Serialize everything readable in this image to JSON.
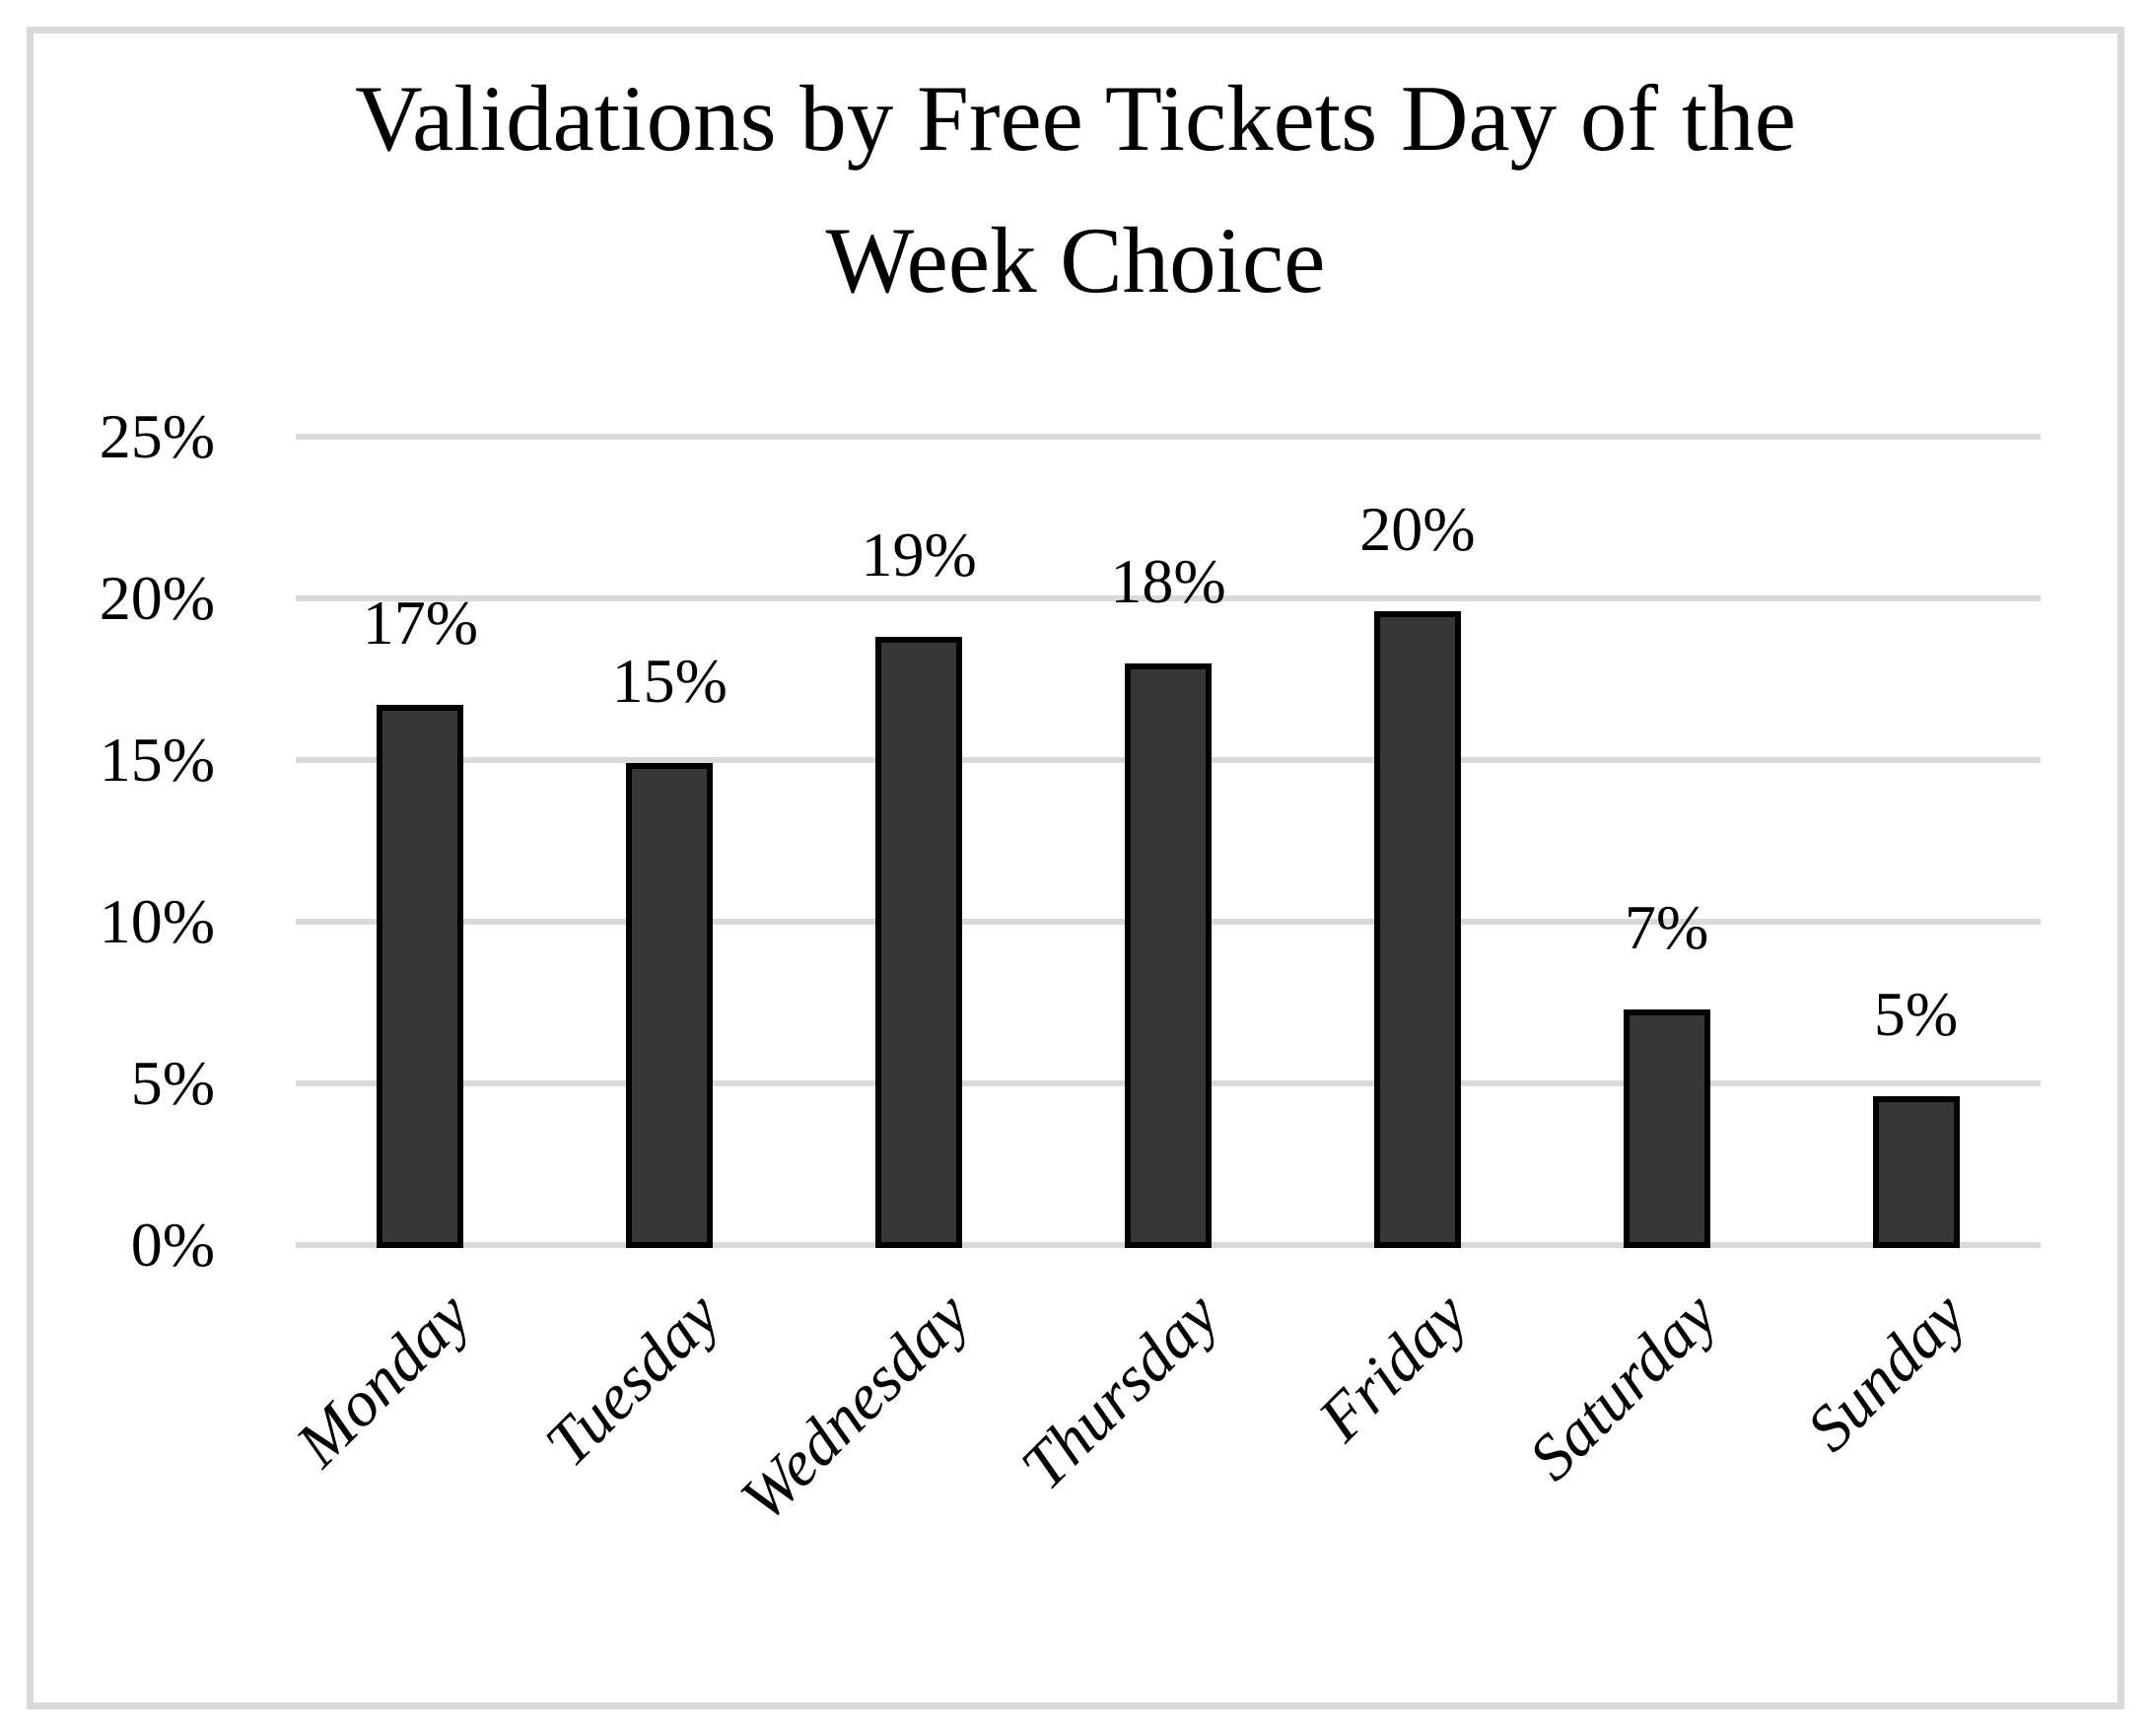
{
  "figure": {
    "background_color": "#ffffff",
    "frame_border_color": "#d9d9d9"
  },
  "chart_data": {
    "type": "bar",
    "title": "Validations by Free Tickets Day of the Week Choice",
    "categories": [
      "Monday",
      "Tuesday",
      "Wednesday",
      "Thursday",
      "Friday",
      "Saturday",
      "Sunday"
    ],
    "values": [
      16.7,
      14.9,
      18.8,
      18.0,
      19.6,
      7.3,
      4.6
    ],
    "data_labels": [
      "17%",
      "15%",
      "19%",
      "18%",
      "20%",
      "7%",
      "5%"
    ],
    "xlabel": "",
    "ylabel": "",
    "y_axis": {
      "min": 0,
      "max": 25,
      "tick_values": [
        0,
        5,
        10,
        15,
        20,
        25
      ],
      "tick_labels": [
        "0%",
        "5%",
        "10%",
        "15%",
        "20%",
        "25%"
      ]
    },
    "grid": "horizontal",
    "legend_position": "none",
    "colors": {
      "bar_fill": "#373737",
      "bar_border": "#000000",
      "gridline": "#d9d9d9",
      "text": "#000000"
    }
  }
}
